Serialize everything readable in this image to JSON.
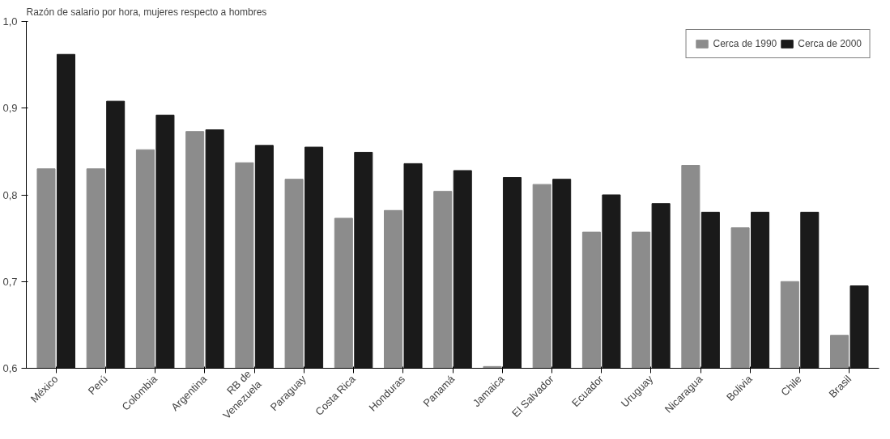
{
  "chart_data": {
    "type": "bar",
    "ylabel": "Razón de salario por hora, mujeres respecto a hombres",
    "categories": [
      "México",
      "Perú",
      "Colombia",
      "Argentina",
      "RB de\nVenezuela",
      "Paraguay",
      "Costa Rica",
      "Honduras",
      "Panamá",
      "Jamaica",
      "El Salvador",
      "Ecuador",
      "Uruguay",
      "Nicaragua",
      "Bolivia",
      "Chile",
      "Brasil"
    ],
    "series": [
      {
        "name": "Cerca de 1990",
        "color": "#8c8c8c",
        "values": [
          0.83,
          0.83,
          0.852,
          0.873,
          0.837,
          0.818,
          0.773,
          0.782,
          0.804,
          0.602,
          0.812,
          0.757,
          0.757,
          0.834,
          0.762,
          0.7,
          0.638
        ]
      },
      {
        "name": "Cerca de 2000",
        "color": "#1a1a1a",
        "values": [
          0.962,
          0.908,
          0.892,
          0.875,
          0.857,
          0.855,
          0.849,
          0.836,
          0.828,
          0.82,
          0.818,
          0.8,
          0.79,
          0.78,
          0.78,
          0.78,
          0.695
        ]
      }
    ],
    "ylim": [
      0.6,
      1.0
    ],
    "yticks": [
      {
        "value": 0.6,
        "label": "0,6"
      },
      {
        "value": 0.7,
        "label": "0,7"
      },
      {
        "value": 0.8,
        "label": "0,8"
      },
      {
        "value": 0.9,
        "label": "0,9"
      },
      {
        "value": 1.0,
        "label": "1,0"
      }
    ],
    "grid": false,
    "legend": "top right"
  }
}
